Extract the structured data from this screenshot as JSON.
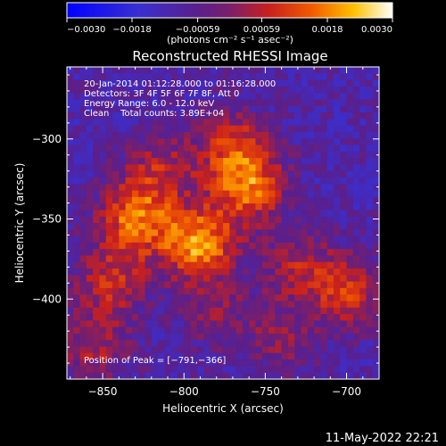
{
  "chart_data": {
    "type": "heatmap",
    "title": "Reconstructed RHESSI Image",
    "xlabel": "Heliocentric X (arcsec)",
    "ylabel": "Heliocentric Y (arcsec)",
    "xlim": [
      -872,
      -680
    ],
    "ylim": [
      -450,
      -255
    ],
    "x_ticks": [
      -850,
      -800,
      -750,
      -700
    ],
    "y_ticks": [
      -300,
      -350,
      -400
    ],
    "x_tick_labels": [
      "−850",
      "−800",
      "−750",
      "−700"
    ],
    "y_tick_labels": [
      "−300",
      "−350",
      "−400"
    ],
    "colorbar": {
      "min": -0.003,
      "max": 0.003,
      "ticks": [
        -0.003,
        -0.0018,
        -0.00059,
        0.00059,
        0.0018,
        0.003
      ],
      "tick_labels": [
        "−0.0030",
        "−0.0018",
        "−0.00059",
        "0.00059",
        "0.0018",
        "0.0030"
      ],
      "unit_label": "(photons cm⁻² s⁻¹ asec⁻²)"
    },
    "annotations": [
      "20-Jan-2014 01:12:28.000 to 01:16:28.000",
      "Detectors: 3F 4F 5F 6F 7F 8F, Att 0",
      "Energy Range: 6.0 - 12.0 keV",
      "Clean    Total counts: 3.89E+04"
    ],
    "peak_label": "Position of Peak = [−791,−366]",
    "peak": [
      -791,
      -366
    ],
    "sources": [
      {
        "x": -791,
        "y": -366,
        "strength": 0.003
      },
      {
        "x": -830,
        "y": -350,
        "strength": 0.0025
      },
      {
        "x": -760,
        "y": -330,
        "strength": 0.0024
      },
      {
        "x": -770,
        "y": -305,
        "strength": 0.0018
      },
      {
        "x": -845,
        "y": -390,
        "strength": 0.0016
      },
      {
        "x": -815,
        "y": -320,
        "strength": 0.0014
      },
      {
        "x": -700,
        "y": -395,
        "strength": 0.0018
      },
      {
        "x": -730,
        "y": -380,
        "strength": 0.0013
      },
      {
        "x": -855,
        "y": -430,
        "strength": 0.0013
      },
      {
        "x": -740,
        "y": -425,
        "strength": 0.001
      },
      {
        "x": -780,
        "y": -410,
        "strength": 0.0009
      }
    ],
    "grid": false
  },
  "footer": {
    "timestamp": "11-May-2022 22:21"
  },
  "colors": {
    "background": "#000000",
    "text": "#ffffff",
    "cmap_low": "#0000ff",
    "cmap_mid": "#5a1f8c",
    "cmap_high": "#ffffff"
  }
}
